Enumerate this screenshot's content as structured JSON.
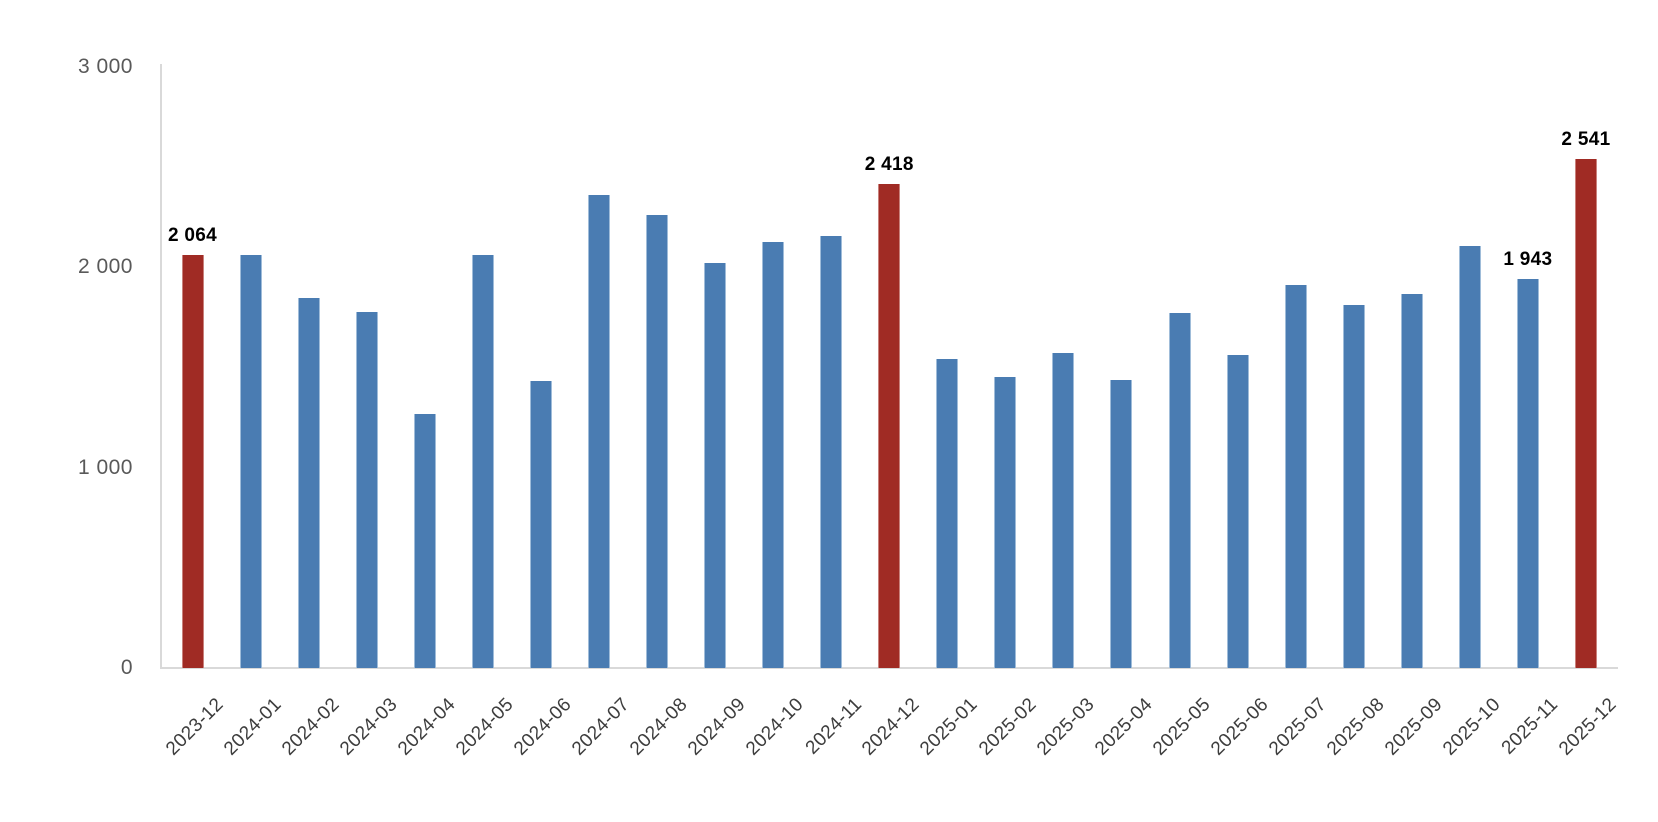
{
  "chart_data": {
    "type": "bar",
    "title": "",
    "xlabel": "",
    "ylabel": "",
    "ylim": [
      0,
      3000
    ],
    "grid": false,
    "legend": "none",
    "categories": [
      "2023-12",
      "2024-01",
      "2024-02",
      "2024-03",
      "2024-04",
      "2024-05",
      "2024-06",
      "2024-07",
      "2024-08",
      "2024-09",
      "2024-10",
      "2024-11",
      "2024-12",
      "2025-01",
      "2025-02",
      "2025-03",
      "2025-04",
      "2025-05",
      "2025-06",
      "2025-07",
      "2025-08",
      "2025-09",
      "2025-10",
      "2025-11",
      "2025-12"
    ],
    "values": [
      2064,
      2060,
      1848,
      1778,
      1268,
      2062,
      1435,
      2360,
      2262,
      2020,
      2125,
      2155,
      2418,
      1545,
      1455,
      1570,
      1437,
      1770,
      1563,
      1912,
      1810,
      1866,
      2105,
      1943,
      2541
    ],
    "highlight_indices": [
      0,
      12,
      24
    ],
    "data_labels": [
      {
        "index": 0,
        "text": "2 064"
      },
      {
        "index": 12,
        "text": "2 418"
      },
      {
        "index": 23,
        "text": "1 943"
      },
      {
        "index": 24,
        "text": "2 541"
      }
    ],
    "y_ticks": [
      {
        "value": 0,
        "label": "0"
      },
      {
        "value": 1000,
        "label": "1 000"
      },
      {
        "value": 2000,
        "label": "2 000"
      },
      {
        "value": 3000,
        "label": "3 000"
      }
    ],
    "colors": {
      "bar": "#4a7cb2",
      "highlight_bar": "#a02b24",
      "axis_line": "#d9d9d9",
      "y_tick_text": "#595959",
      "x_tick_text": "#3d3d3d",
      "data_label_text": "#000000",
      "background": "#ffffff"
    }
  }
}
